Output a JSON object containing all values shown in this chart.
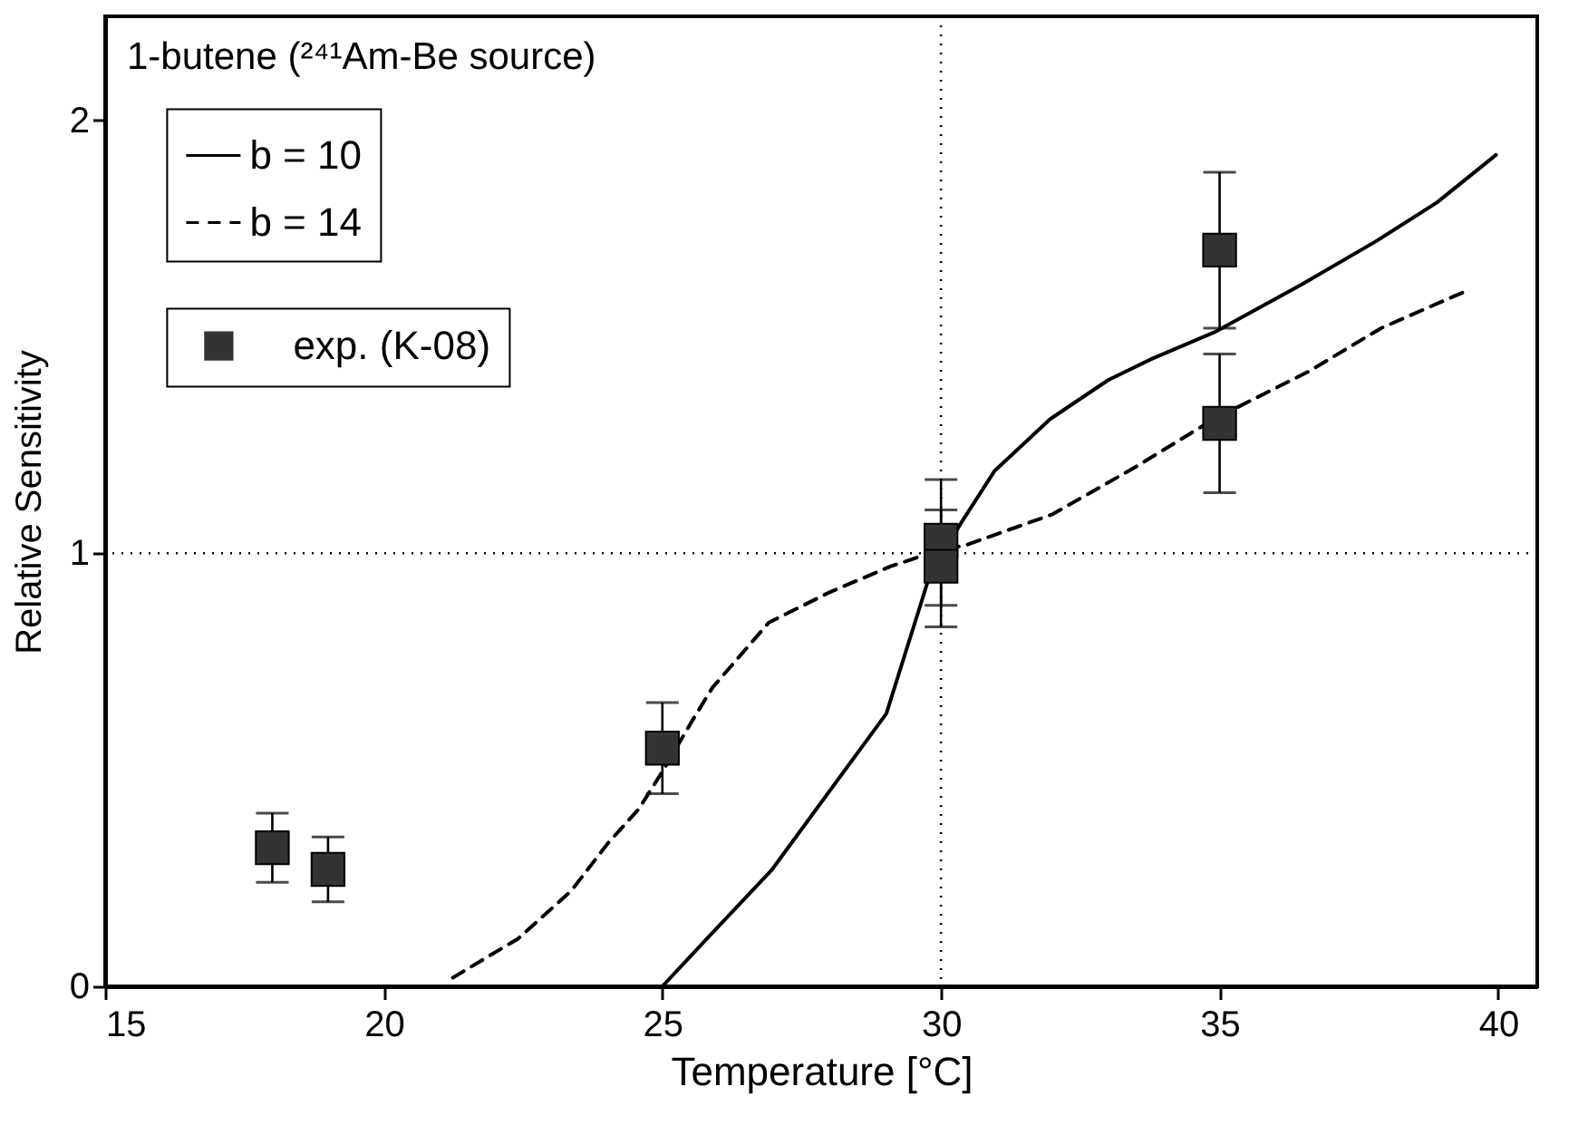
{
  "chart_data": {
    "type": "line",
    "xlabel": "Temperature [°C]",
    "ylabel": "Relative  Sensitivity",
    "annotations": [
      "1-butene (²⁴¹Am-Be source)"
    ],
    "xlim": [
      15,
      40.7
    ],
    "ylim": [
      0,
      2.24
    ],
    "xticks": [
      15,
      20,
      25,
      30,
      35,
      40
    ],
    "yticks": [
      0,
      1,
      2
    ],
    "grid": false,
    "legend": "top left",
    "ref_lines": [
      {
        "axis": "x",
        "value": 30,
        "line_style": "dotted"
      },
      {
        "axis": "y",
        "value": 1,
        "line_style": "dotted"
      }
    ],
    "series": [
      {
        "name": "b = 10",
        "color": "#000000",
        "line_style": "solid",
        "x": [
          25,
          25.8,
          26.97,
          29.02,
          29.8,
          30.36,
          30.96,
          31.96,
          33.0,
          33.8,
          34.9,
          36.46,
          37.8,
          38.9,
          39.96
        ],
        "values": [
          0,
          0.11,
          0.27,
          0.63,
          0.95,
          1.07,
          1.19,
          1.31,
          1.4,
          1.45,
          1.51,
          1.62,
          1.72,
          1.81,
          1.92
        ]
      },
      {
        "name": "b = 14",
        "color": "#000000",
        "line_style": "dashed",
        "x": [
          21.24,
          22.41,
          23.36,
          24.02,
          24.58,
          25.02,
          25.52,
          25.9,
          26.91,
          28.0,
          29.1,
          29.8,
          30.47,
          32.0,
          33.5,
          34.9,
          36.6,
          37.9,
          39.5
        ],
        "values": [
          0.02,
          0.11,
          0.22,
          0.33,
          0.41,
          0.5,
          0.61,
          0.69,
          0.84,
          0.91,
          0.97,
          1.0,
          1.02,
          1.09,
          1.2,
          1.31,
          1.42,
          1.52,
          1.61
        ]
      },
      {
        "name": "exp. (K-08)",
        "type": "scatter",
        "color": "#333333",
        "marker": "square",
        "x": [
          18,
          19,
          25,
          30,
          30,
          35,
          35
        ],
        "values": [
          0.32,
          0.27,
          0.55,
          1.03,
          0.97,
          1.7,
          1.3
        ],
        "errors": [
          0.08,
          0.075,
          0.105,
          [
            0.88,
            1.17
          ],
          [
            0.83,
            1.1
          ],
          0.18,
          0.16
        ]
      }
    ]
  }
}
